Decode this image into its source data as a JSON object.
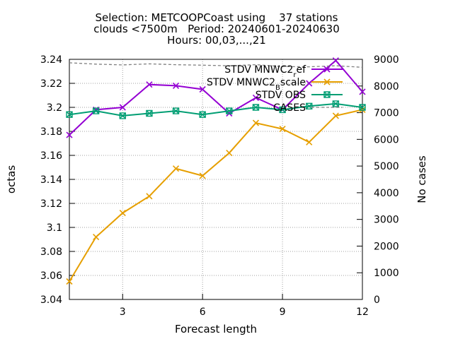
{
  "chart_data": {
    "type": "line",
    "title_lines": [
      "Selection: METCOOPCoast using    37 stations",
      "clouds <7500m   Period: 20240601-20240630",
      "Hours: 00,03,...,21"
    ],
    "xlabel": "Forecast length",
    "ylabel": "octas",
    "y2label": "No cases",
    "xlim": [
      1,
      12
    ],
    "ylim": [
      3.04,
      3.24
    ],
    "y2lim": [
      0,
      9000
    ],
    "x_ticks": [
      3,
      6,
      9,
      12
    ],
    "y_ticks": [
      "3.04",
      "3.06",
      "3.08",
      "3.1",
      "3.12",
      "3.14",
      "3.16",
      "3.18",
      "3.2",
      "3.22",
      "3.24"
    ],
    "y2_ticks": [
      0,
      1000,
      2000,
      3000,
      4000,
      5000,
      6000,
      7000,
      8000,
      9000
    ],
    "grid": true,
    "legend_position": "top-right",
    "x": [
      1,
      2,
      3,
      4,
      5,
      6,
      7,
      8,
      9,
      10,
      11,
      12
    ],
    "series": [
      {
        "name": "STDV MNWC2_ref",
        "legend_main": "STDV MNWC2",
        "legend_sub": "r",
        "legend_tail": "ef",
        "color": "#9400d3",
        "marker": "x",
        "axis": "y",
        "values": [
          3.177,
          3.198,
          3.2,
          3.219,
          3.218,
          3.215,
          3.195,
          3.208,
          3.198,
          3.22,
          3.239,
          3.213
        ]
      },
      {
        "name": "STDV MNWC2_Bscale",
        "legend_main": "STDV MNWC2",
        "legend_sub": "B",
        "legend_tail": "scale",
        "color": "#e69f00",
        "marker": "x",
        "axis": "y",
        "values": [
          3.055,
          3.092,
          3.112,
          3.126,
          3.149,
          3.143,
          3.162,
          3.187,
          3.182,
          3.171,
          3.193,
          3.198
        ]
      },
      {
        "name": "STDV OBS",
        "legend_main": "STDV OBS",
        "legend_sub": "",
        "legend_tail": "",
        "color": "#009e73",
        "marker": "box",
        "axis": "y",
        "values": [
          3.194,
          3.197,
          3.193,
          3.195,
          3.197,
          3.194,
          3.197,
          3.2,
          3.198,
          3.201,
          3.203,
          3.2
        ]
      },
      {
        "name": "CASES",
        "legend_main": "CASES",
        "legend_sub": "",
        "legend_tail": "",
        "color": "#808080",
        "marker": "none",
        "dashed": true,
        "axis": "y2",
        "values": [
          8870,
          8820,
          8790,
          8830,
          8800,
          8780,
          8760,
          8800,
          8730,
          8720,
          8760,
          8700
        ]
      }
    ]
  }
}
